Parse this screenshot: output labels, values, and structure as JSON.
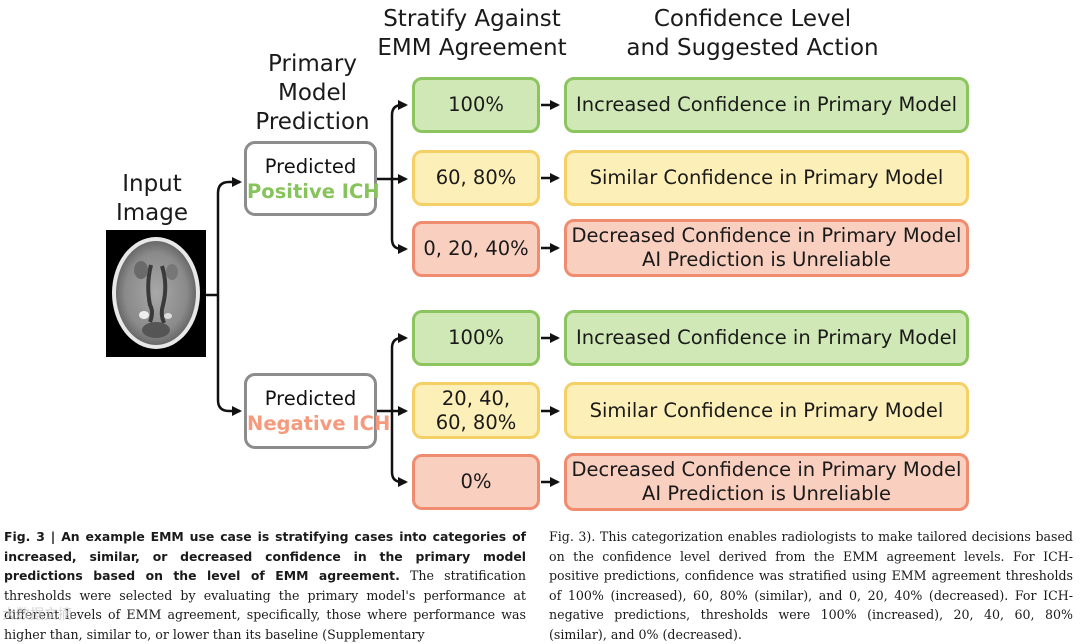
{
  "headers": {
    "input": "Input\nImage",
    "primary": "Primary\nModel\nPrediction",
    "stratify": "Stratify Against\nEMM Agreement",
    "confidence": "Confidence Level\nand Suggested Action"
  },
  "positive": {
    "pred_line1": "Predicted",
    "pred_line2": "Positive ICH",
    "high_threshold": "100%",
    "mid_threshold": "60, 80%",
    "low_threshold": "0, 20, 40%",
    "high_action": "Increased Confidence in Primary Model",
    "mid_action": "Similar Confidence in Primary Model",
    "low_action_line1": "Decreased Confidence in Primary Model",
    "low_action_line2": "AI Prediction is Unreliable"
  },
  "negative": {
    "pred_line1": "Predicted",
    "pred_line2": "Negative ICH",
    "high_threshold": "100%",
    "mid_threshold": "20, 40,\n60, 80%",
    "low_threshold": "0%",
    "high_action": "Increased Confidence in Primary Model",
    "mid_action": "Similar Confidence in Primary Model",
    "low_action_line1": "Decreased Confidence in Primary Model",
    "low_action_line2": "AI Prediction is Unreliable"
  },
  "caption": {
    "left_bold": "Fig. 3 | An example EMM use case is stratifying cases into categories of increased, similar, or decreased confidence in the primary model predictions based on the level of EMM agreement.",
    "left_text": " The stratification thresholds were selected by evaluating the primary model's performance at different levels of EMM agreement, specifically, those where performance was higher than, similar to, or lower than its baseline (Supplementary",
    "right_text": "Fig. 3). This categorization enables radiologists to make tailored decisions based on the confidence level derived from the EMM agreement levels. For ICH-positive predictions, confidence was stratified using EMM agreement thresholds of 100% (increased), 60, 80% (similar), and 0, 20, 40% (decreased). For ICH-negative predictions, thresholds were 100% (increased), 20, 40, 60, 80% (similar), and 0% (decreased)."
  },
  "watermark": "大数据文摘",
  "colors": {
    "increased": "#cfe8b5",
    "similar": "#fdefb8",
    "decreased": "#f9cfbf",
    "positive_text": "#86c35a",
    "negative_text": "#f59a7c"
  }
}
